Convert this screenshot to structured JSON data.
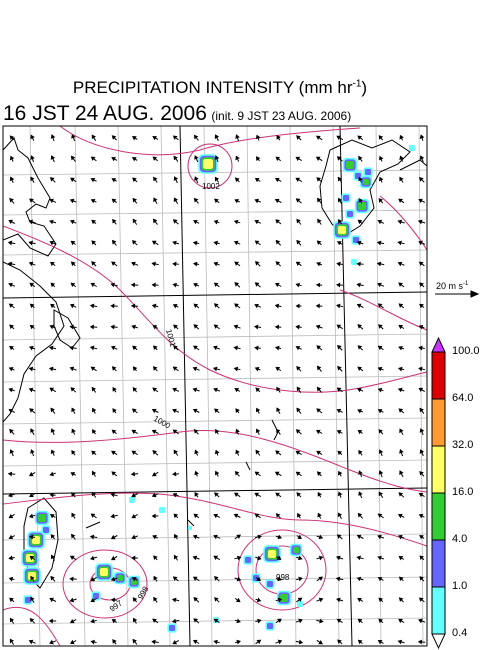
{
  "title": {
    "main": "PRECIPITATION INTENSITY (mm hr",
    "unit_exp": "-1",
    "main_close": ")",
    "datetime": "16 JST 24 AUG. 2006",
    "init": "(init. 9 JST 23 AUG. 2006)"
  },
  "wind_scale": {
    "value": "20 m s",
    "exp": "-1"
  },
  "pressure_labels": [
    "1002",
    "1001",
    "1000",
    "997",
    "998",
    "998"
  ],
  "legend": {
    "levels": [
      "100.0",
      "64.0",
      "32.0",
      "16.0",
      "4.0",
      "1.0",
      "0.4"
    ],
    "colors": [
      "#dd0000",
      "#ff9933",
      "#ffff66",
      "#33cc33",
      "#6666ff",
      "#66ffff"
    ],
    "cap_top_color": "#cc33ff",
    "cap_bottom_color": "#ffffff"
  },
  "colors": {
    "isobar": "#cc3377",
    "grid": "#bbbbbb",
    "coast": "#000000"
  }
}
